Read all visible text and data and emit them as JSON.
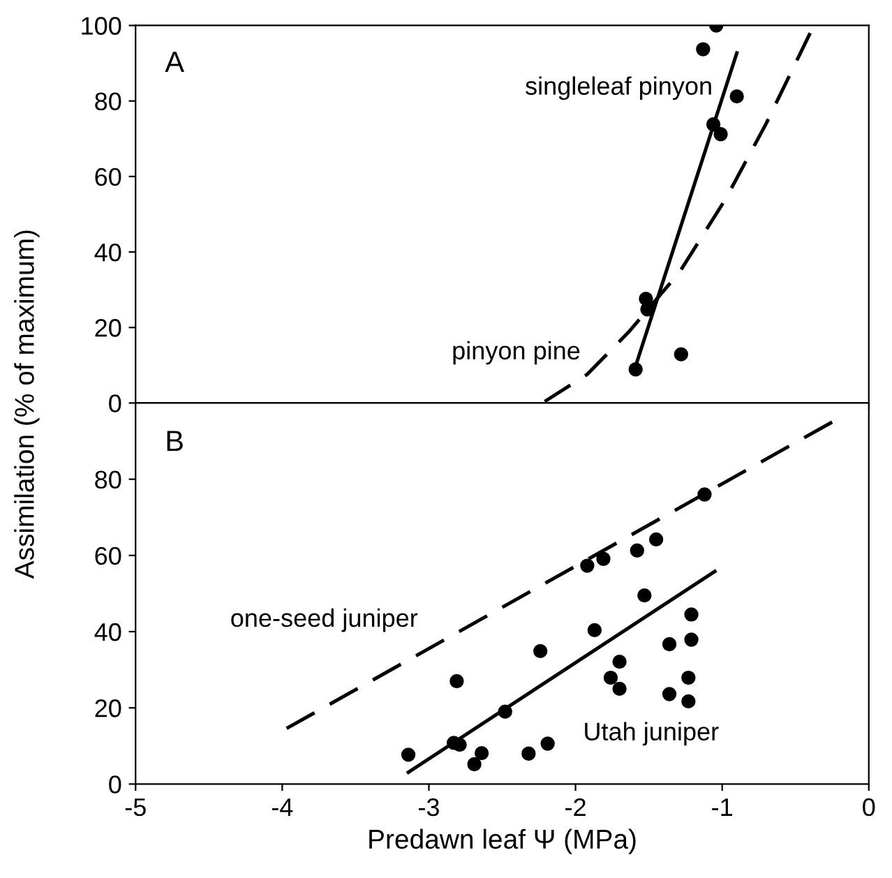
{
  "chart_data": [
    {
      "type": "scatter",
      "ylabel": "Assimilation (% of maximum)",
      "xlim": [
        -5,
        0
      ],
      "ylim": [
        0,
        100
      ],
      "xticks": [
        -5,
        -4,
        -3,
        -2,
        -1,
        0
      ],
      "yticks": [
        0,
        20,
        40,
        60,
        80,
        100
      ],
      "tick_labels": "y",
      "grid": false,
      "legend": false,
      "annotations": [
        "A",
        "singleleaf pinyon",
        "pinyon pine"
      ],
      "series": [
        {
          "color": "#000000",
          "marker": "circle",
          "x": [
            -1.04,
            -1.13,
            -0.9,
            -1.06,
            -1.01,
            -1.52,
            -1.51,
            -1.28,
            -1.59
          ],
          "values": [
            100,
            93.7,
            81.2,
            73.8,
            71.2,
            27.6,
            24.8,
            12.9,
            8.9
          ]
        },
        {
          "type": "line",
          "color": "#000000",
          "line_style": "solid",
          "x": [
            -1.59,
            -0.9
          ],
          "values": [
            9.8,
            92.7
          ]
        },
        {
          "type": "line",
          "color": "#000000",
          "line_style": "dashed",
          "x": [
            -2.21,
            -1.92,
            -1.64,
            -1.29,
            -0.98,
            -0.7,
            -0.4
          ],
          "values": [
            0.4,
            7.6,
            18.7,
            34.7,
            53.8,
            74,
            98
          ]
        }
      ]
    },
    {
      "type": "scatter",
      "xlabel": "Predawn leaf Ψ (MPa)",
      "xlim": [
        -5,
        0
      ],
      "ylim": [
        0,
        100
      ],
      "xticks": [
        -5,
        -4,
        -3,
        -2,
        -1,
        0
      ],
      "yticks": [
        0,
        20,
        40,
        60,
        80
      ],
      "grid": false,
      "legend": false,
      "annotations": [
        "B",
        "one-seed juniper",
        "Utah juniper"
      ],
      "series": [
        {
          "color": "#000000",
          "marker": "circle",
          "x": [
            -2.81,
            -3.14,
            -2.83,
            -2.79,
            -2.64,
            -2.69,
            -2.48,
            -2.32,
            -2.19,
            -2.24,
            -1.87,
            -1.92,
            -1.81,
            -1.58,
            -1.45,
            -1.12,
            -1.53,
            -1.7,
            -1.76,
            -1.7,
            -1.36,
            -1.21,
            -1.21,
            -1.23,
            -1.36,
            -1.23
          ],
          "values": [
            27.0,
            7.7,
            10.8,
            10.3,
            8.1,
            5.2,
            19.0,
            8.0,
            10.6,
            34.9,
            40.4,
            57.3,
            59.1,
            61.3,
            64.2,
            76.0,
            49.5,
            32.1,
            27.9,
            25.0,
            36.7,
            44.5,
            37.9,
            27.9,
            23.6,
            21.7
          ]
        },
        {
          "type": "line",
          "color": "#000000",
          "line_style": "solid",
          "x": [
            -3.14,
            -1.05
          ],
          "values": [
            3.1,
            55.8
          ]
        },
        {
          "type": "line",
          "color": "#000000",
          "line_style": "dashed",
          "x": [
            -3.97,
            -0.25
          ],
          "values": [
            14.6,
            95
          ]
        }
      ]
    }
  ]
}
